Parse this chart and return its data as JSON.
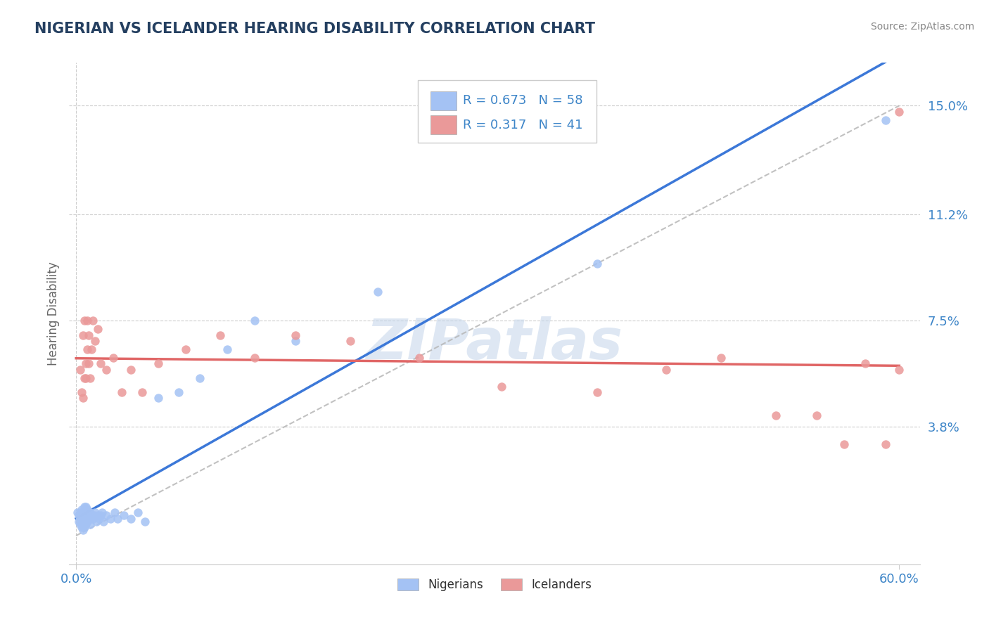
{
  "title": "NIGERIAN VS ICELANDER HEARING DISABILITY CORRELATION CHART",
  "source": "Source: ZipAtlas.com",
  "ylabel": "Hearing Disability",
  "xlim": [
    -0.005,
    0.615
  ],
  "ylim": [
    -0.01,
    0.165
  ],
  "ytick_vals": [
    0.038,
    0.075,
    0.112,
    0.15
  ],
  "ytick_labels": [
    "3.8%",
    "7.5%",
    "11.2%",
    "15.0%"
  ],
  "xtick_vals": [
    0.0,
    0.6
  ],
  "xtick_labels": [
    "0.0%",
    "60.0%"
  ],
  "nigerian_R": 0.673,
  "nigerian_N": 58,
  "icelander_R": 0.317,
  "icelander_N": 41,
  "blue_dot_color": "#a4c2f4",
  "pink_dot_color": "#ea9999",
  "blue_line_color": "#3c78d8",
  "pink_line_color": "#e06666",
  "gray_dash_color": "#b7b7b7",
  "watermark": "ZIPatlas",
  "background_color": "#ffffff",
  "title_color": "#243f60",
  "axis_label_color": "#3d85c8",
  "tick_color": "#3d85c8",
  "nigerian_x": [
    0.001,
    0.002,
    0.002,
    0.003,
    0.003,
    0.003,
    0.004,
    0.004,
    0.004,
    0.004,
    0.005,
    0.005,
    0.005,
    0.005,
    0.006,
    0.006,
    0.006,
    0.006,
    0.006,
    0.007,
    0.007,
    0.007,
    0.007,
    0.008,
    0.008,
    0.008,
    0.009,
    0.009,
    0.01,
    0.01,
    0.01,
    0.011,
    0.012,
    0.013,
    0.014,
    0.015,
    0.016,
    0.017,
    0.018,
    0.019,
    0.02,
    0.022,
    0.025,
    0.028,
    0.03,
    0.035,
    0.04,
    0.045,
    0.05,
    0.06,
    0.075,
    0.09,
    0.11,
    0.13,
    0.16,
    0.22,
    0.38,
    0.59
  ],
  "nigerian_y": [
    0.008,
    0.005,
    0.007,
    0.004,
    0.006,
    0.008,
    0.003,
    0.005,
    0.007,
    0.009,
    0.002,
    0.004,
    0.006,
    0.008,
    0.003,
    0.005,
    0.007,
    0.009,
    0.01,
    0.004,
    0.006,
    0.008,
    0.01,
    0.005,
    0.007,
    0.009,
    0.006,
    0.008,
    0.004,
    0.006,
    0.008,
    0.007,
    0.006,
    0.007,
    0.008,
    0.005,
    0.007,
    0.006,
    0.007,
    0.008,
    0.005,
    0.007,
    0.006,
    0.008,
    0.006,
    0.007,
    0.006,
    0.008,
    0.005,
    0.048,
    0.05,
    0.055,
    0.065,
    0.075,
    0.068,
    0.085,
    0.095,
    0.145
  ],
  "icelander_x": [
    0.003,
    0.004,
    0.005,
    0.005,
    0.006,
    0.006,
    0.007,
    0.007,
    0.008,
    0.008,
    0.009,
    0.009,
    0.01,
    0.011,
    0.012,
    0.014,
    0.016,
    0.018,
    0.022,
    0.027,
    0.033,
    0.04,
    0.048,
    0.06,
    0.08,
    0.105,
    0.13,
    0.16,
    0.2,
    0.25,
    0.31,
    0.38,
    0.43,
    0.47,
    0.51,
    0.54,
    0.56,
    0.575,
    0.59,
    0.6,
    0.6
  ],
  "icelander_y": [
    0.058,
    0.05,
    0.048,
    0.07,
    0.055,
    0.075,
    0.06,
    0.055,
    0.065,
    0.075,
    0.06,
    0.07,
    0.055,
    0.065,
    0.075,
    0.068,
    0.072,
    0.06,
    0.058,
    0.062,
    0.05,
    0.058,
    0.05,
    0.06,
    0.065,
    0.07,
    0.062,
    0.07,
    0.068,
    0.062,
    0.052,
    0.05,
    0.058,
    0.062,
    0.042,
    0.042,
    0.032,
    0.06,
    0.032,
    0.058,
    0.148
  ]
}
